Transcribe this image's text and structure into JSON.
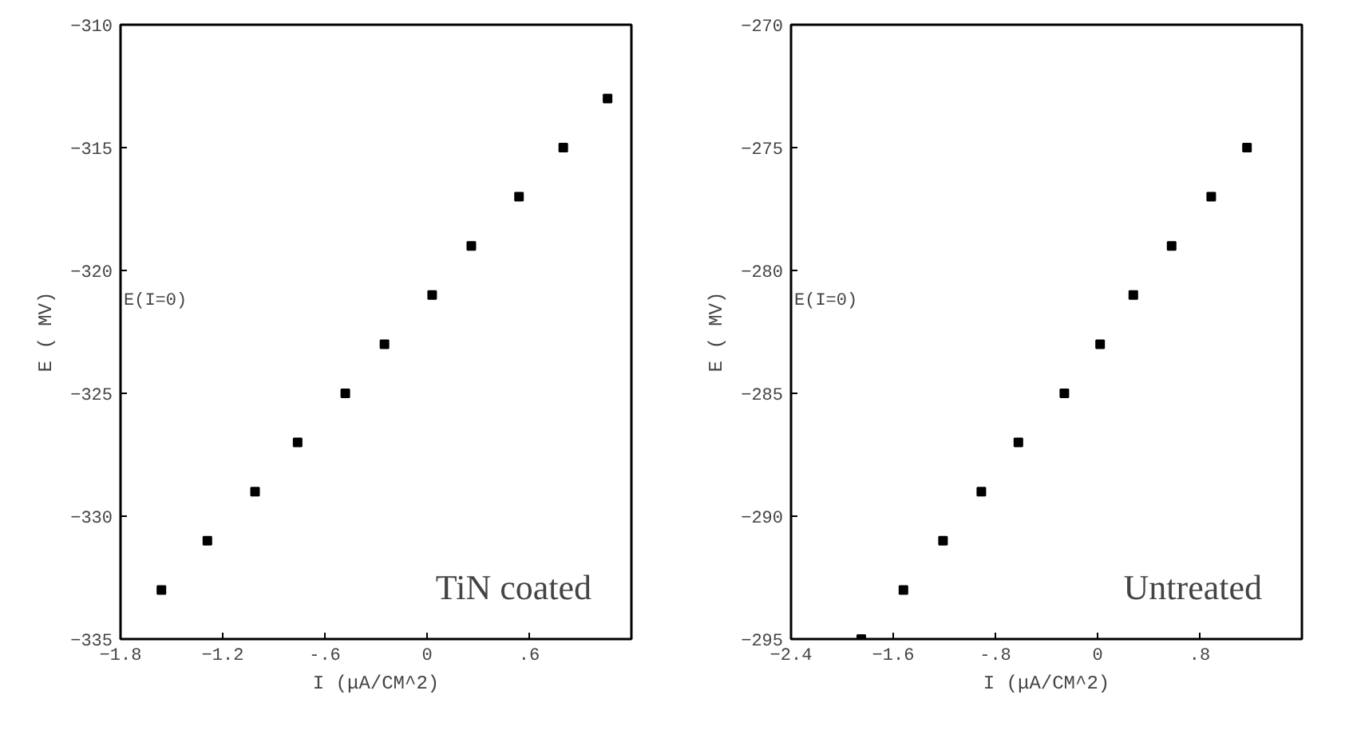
{
  "chart_data": [
    {
      "type": "scatter",
      "xlabel": "I (μA/CM^2)",
      "ylabel": "E ( MV)",
      "marker": "square",
      "xlim": [
        -1.8,
        1.2
      ],
      "ylim": [
        -335,
        -310
      ],
      "xticks": [
        -1.8,
        -1.2,
        {
          "value": -0.6,
          "label": "-.6"
        },
        0,
        {
          "value": 0.6,
          "label": ".6"
        }
      ],
      "yticks": [
        -335,
        -330,
        -325,
        -320,
        -315,
        -310
      ],
      "series": [
        {
          "color": "#000000",
          "x": [
            -1.56,
            -1.29,
            -1.01,
            -0.76,
            -0.48,
            -0.25,
            0.03,
            0.26,
            0.54,
            0.8,
            1.06
          ],
          "values": [
            -333,
            -331,
            -329,
            -327,
            -325,
            -323,
            -321,
            -319,
            -317,
            -315,
            -313
          ]
        }
      ],
      "annotations": [
        "E(I=0)",
        "TiN coated"
      ]
    },
    {
      "type": "scatter",
      "xlabel": "I (μA/CM^2)",
      "ylabel": "E ( MV)",
      "marker": "square",
      "xlim": [
        -2.4,
        1.6
      ],
      "ylim": [
        -295,
        -270
      ],
      "xticks": [
        -2.4,
        -1.6,
        {
          "value": -0.8,
          "label": "-.8"
        },
        0,
        {
          "value": 0.8,
          "label": ".8"
        }
      ],
      "yticks": [
        -295,
        -290,
        -285,
        -280,
        -275,
        -270
      ],
      "series": [
        {
          "color": "#000000",
          "x": [
            -1.85,
            -1.52,
            -1.21,
            -0.91,
            -0.62,
            -0.26,
            0.02,
            0.28,
            0.58,
            0.89,
            1.17
          ],
          "values": [
            -295,
            -293,
            -291,
            -289,
            -287,
            -285,
            -283,
            -281,
            -279,
            -277,
            -275
          ]
        }
      ],
      "annotations": [
        "E(I=0)",
        "Untreated"
      ]
    }
  ]
}
